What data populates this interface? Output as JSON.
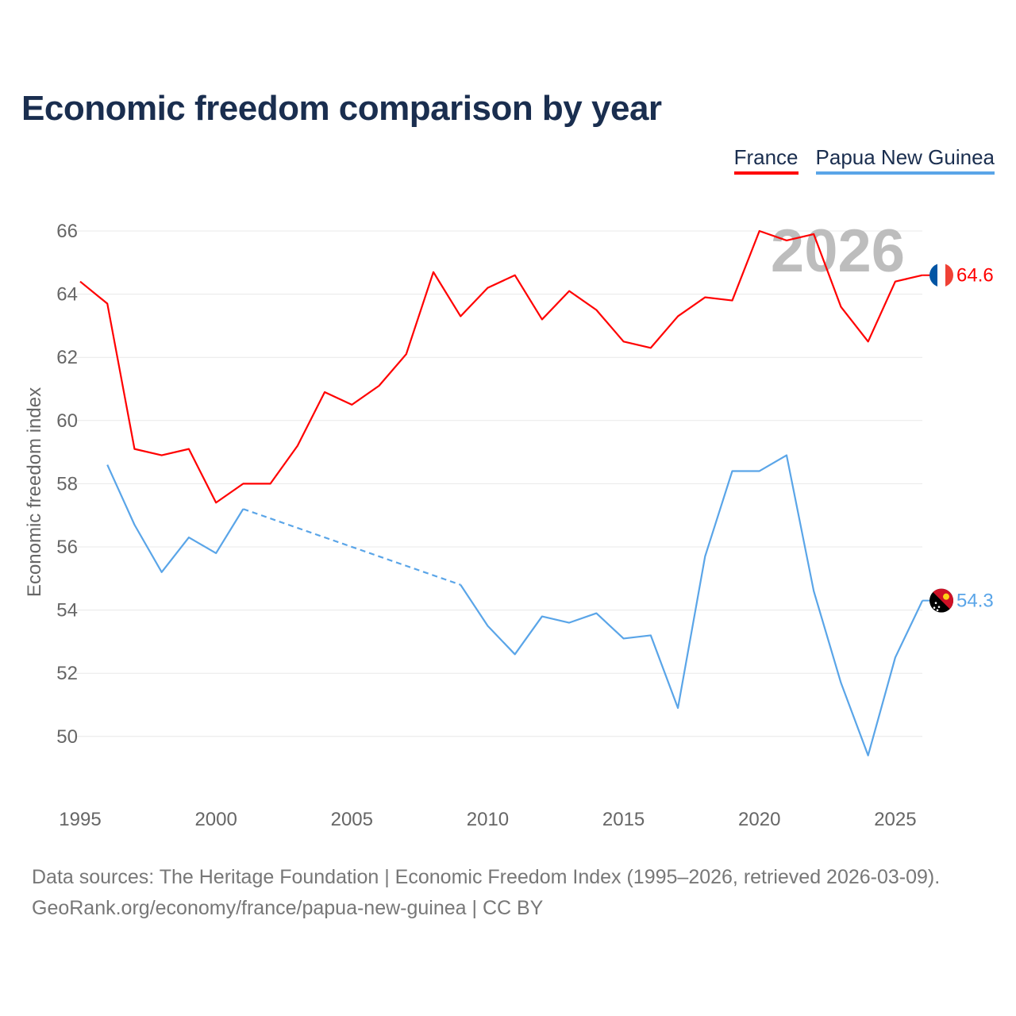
{
  "chart_data": {
    "type": "line",
    "title": "Economic freedom comparison by year",
    "xlabel": "",
    "ylabel": "Economic freedom index",
    "xlim": [
      1995,
      2026
    ],
    "ylim": [
      48,
      67
    ],
    "x_ticks": [
      "1995",
      "2000",
      "2005",
      "2010",
      "2015",
      "2020",
      "2025"
    ],
    "y_ticks": [
      "50",
      "52",
      "54",
      "56",
      "58",
      "60",
      "62",
      "64",
      "66"
    ],
    "grid": true,
    "legend_position": "top-right",
    "year_watermark": "2026",
    "x": [
      1995,
      1996,
      1997,
      1998,
      1999,
      2000,
      2001,
      2002,
      2003,
      2004,
      2005,
      2006,
      2007,
      2008,
      2009,
      2010,
      2011,
      2012,
      2013,
      2014,
      2015,
      2016,
      2017,
      2018,
      2019,
      2020,
      2021,
      2022,
      2023,
      2024,
      2025,
      2026
    ],
    "series": [
      {
        "name": "France",
        "color": "#ff0000",
        "end_label": "64.6",
        "values": [
          64.4,
          63.7,
          59.1,
          58.9,
          59.1,
          57.4,
          58.0,
          58.0,
          59.2,
          60.9,
          60.5,
          61.1,
          62.1,
          64.7,
          63.3,
          64.2,
          64.6,
          63.2,
          64.1,
          63.5,
          62.5,
          62.3,
          63.3,
          63.9,
          63.8,
          66.0,
          65.7,
          65.9,
          63.6,
          62.5,
          64.4,
          64.6
        ]
      },
      {
        "name": "Papua New Guinea",
        "color": "#5aa5e8",
        "end_label": "54.3",
        "values": [
          null,
          58.6,
          56.7,
          55.2,
          56.3,
          55.8,
          57.2,
          null,
          null,
          null,
          null,
          null,
          null,
          null,
          54.8,
          53.5,
          52.6,
          53.8,
          53.6,
          53.9,
          53.1,
          53.2,
          50.9,
          55.7,
          58.4,
          58.4,
          58.9,
          54.6,
          51.7,
          49.4,
          52.5,
          54.3
        ]
      }
    ]
  },
  "source": {
    "line1": "Data sources: The Heritage Foundation | Economic Freedom Index (1995–2026, retrieved 2026-03-09).",
    "line2": "GeoRank.org/economy/france/papua-new-guinea | CC BY"
  }
}
